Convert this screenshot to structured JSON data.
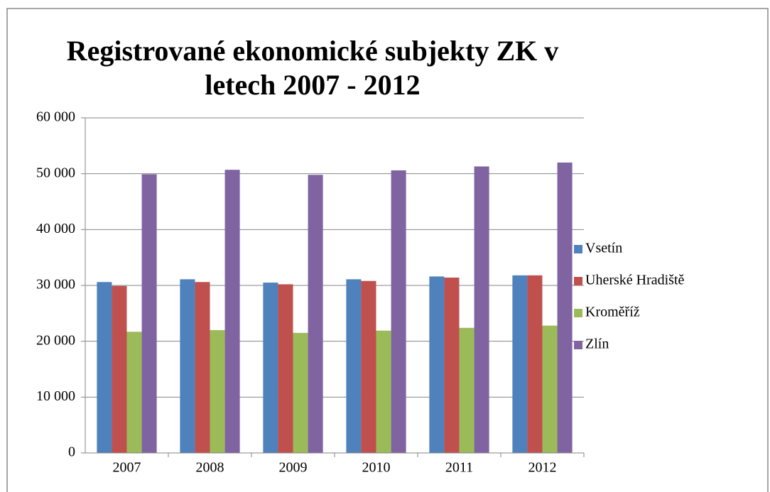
{
  "chart_data": {
    "type": "bar",
    "title": "Registrované ekonomické subjekty ZK v letech 2007 - 2012",
    "categories": [
      "2007",
      "2008",
      "2009",
      "2010",
      "2011",
      "2012"
    ],
    "series": [
      {
        "name": "Vsetín",
        "color": "#4f81bd",
        "values": [
          30600,
          31100,
          30500,
          31100,
          31600,
          31800
        ]
      },
      {
        "name": "Uherské Hradiště",
        "color": "#c0504d",
        "values": [
          29900,
          30600,
          30200,
          30800,
          31400,
          31800
        ]
      },
      {
        "name": "Kroměříž",
        "color": "#9bbb59",
        "values": [
          21700,
          22000,
          21500,
          21900,
          22400,
          22800
        ]
      },
      {
        "name": "Zlín",
        "color": "#8064a2",
        "values": [
          49900,
          50700,
          49800,
          50600,
          51300,
          52000
        ]
      }
    ],
    "ylim": [
      0,
      60000
    ],
    "yticks": [
      0,
      {
        "value": 10000,
        "label": "10 000"
      },
      {
        "value": 20000,
        "label": "20 000"
      },
      {
        "value": 30000,
        "label": "30 000"
      },
      {
        "value": 40000,
        "label": "40 000"
      },
      {
        "value": 50000,
        "label": "50 000"
      },
      {
        "value": 60000,
        "label": "60 000"
      }
    ],
    "grid": true,
    "legend": "right"
  }
}
